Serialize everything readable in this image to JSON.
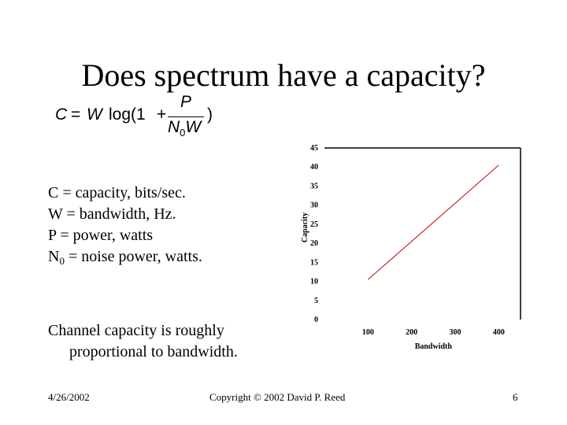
{
  "slide": {
    "title": "Does spectrum have a capacity?",
    "formula": {
      "lhs": "C",
      "equals": "=",
      "w": "W",
      "log_open": "log(1",
      "plus": "+",
      "numerator": "P",
      "denom_n": "N",
      "denom_sub": "0",
      "denom_w": "W",
      "close": ")"
    },
    "definitions": [
      {
        "symbol": "C",
        "text": "= capacity, bits/sec."
      },
      {
        "symbol": "W",
        "text": "= bandwidth, Hz."
      },
      {
        "symbol": "P",
        "text": "= power, watts"
      },
      {
        "symbol": "N",
        "subscript": "0",
        "text": "= noise power, watts."
      }
    ],
    "summary": {
      "line1": "Channel capacity is roughly",
      "line2": "proportional to bandwidth."
    },
    "footer": {
      "date": "4/26/2002",
      "copyright": "Copyright © 2002 David P. Reed",
      "page": "6"
    }
  },
  "chart_data": {
    "type": "line",
    "title": "",
    "xlabel": "Bandwidth",
    "ylabel": "Capacity",
    "x_ticks": [
      "100",
      "200",
      "300",
      "400"
    ],
    "y_ticks": [
      "0",
      "5",
      "10",
      "15",
      "20",
      "25",
      "30",
      "35",
      "40",
      "45"
    ],
    "xlim": [
      0,
      450
    ],
    "ylim": [
      0,
      45
    ],
    "series": [
      {
        "x": [
          100,
          400
        ],
        "y": [
          10.5,
          40.5
        ],
        "color": "#cc0000"
      }
    ],
    "grid": false,
    "legend": "none"
  }
}
